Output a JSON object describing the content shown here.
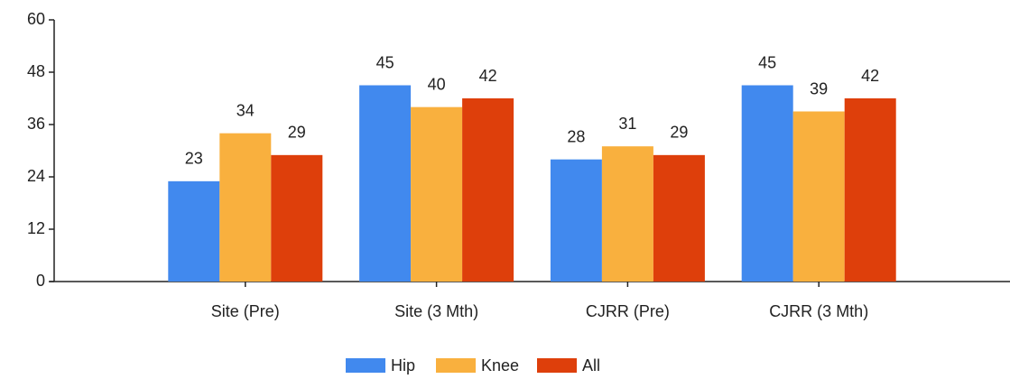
{
  "chart_data": {
    "type": "bar",
    "categories": [
      "Site (Pre)",
      "Site (3 Mth)",
      "CJRR (Pre)",
      "CJRR (3 Mth)"
    ],
    "series": [
      {
        "name": "Hip",
        "color": "#4189ee",
        "values": [
          23,
          45,
          28,
          45
        ]
      },
      {
        "name": "Knee",
        "color": "#f9b03e",
        "values": [
          34,
          40,
          31,
          39
        ]
      },
      {
        "name": "All",
        "color": "#de3f0b",
        "values": [
          29,
          42,
          29,
          42
        ]
      }
    ],
    "ylim": [
      0,
      60
    ],
    "yticks": [
      0,
      12,
      24,
      36,
      48,
      60
    ],
    "grid": false,
    "legend": "bottom"
  }
}
